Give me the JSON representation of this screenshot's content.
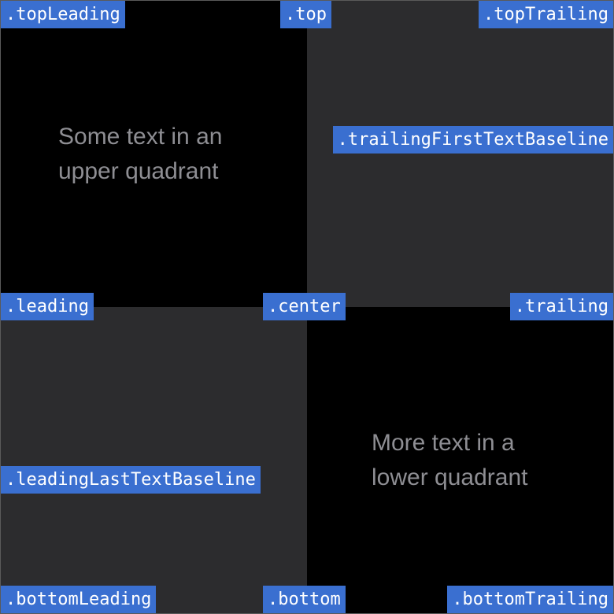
{
  "quadrants": {
    "upper_text": "Some text in an\nupper quadrant",
    "lower_text": "More text in a\nlower quadrant"
  },
  "colors": {
    "label_background": "#3a6fd0",
    "label_text": "#ffffff",
    "dark_quadrant": "#000000",
    "gray_quadrant": "#2c2c2e",
    "quadrant_text": "#8e8e93"
  },
  "labels": {
    "top_leading": ".topLeading",
    "top": ".top",
    "top_trailing": ".topTrailing",
    "trailing_first_text_baseline": ".trailingFirstTextBaseline",
    "leading": ".leading",
    "center": ".center",
    "trailing": ".trailing",
    "leading_last_text_baseline": ".leadingLastTextBaseline",
    "bottom_leading": ".bottomLeading",
    "bottom": ".bottom",
    "bottom_trailing": ".bottomTrailing"
  }
}
